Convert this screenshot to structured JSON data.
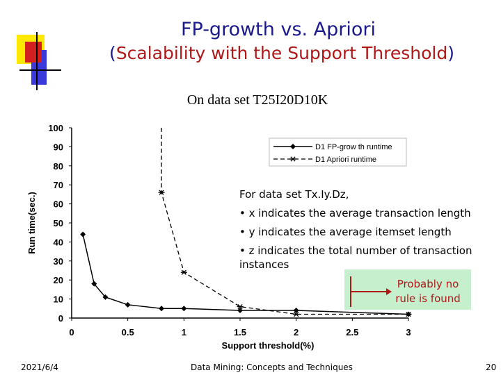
{
  "slide": {
    "title_line1": "FP-growth vs. Apriori",
    "title_line2_open": "(",
    "title_line2_main": "Scalability with the Support Threshold",
    "title_line2_close": ")",
    "subtitle": "On data set T25I20D10K",
    "accent_colors": {
      "title": "#1a1a8c",
      "red": "#b01818",
      "yellow": "#ffe800",
      "blue": "#3a3adc",
      "callout_bg": "#c6efce"
    }
  },
  "note": {
    "line1": "For data set Tx.Iy.Dz,",
    "line2": "• x indicates the average transaction length",
    "line3": "• y indicates the average itemset length",
    "line4": "• z indicates the total number of transaction instances"
  },
  "callout": {
    "text": "Probably no rule is found"
  },
  "footer": {
    "date": "2021/6/4",
    "center": "Data Mining: Concepts and Techniques",
    "page": "20"
  },
  "chart_data": {
    "type": "line",
    "title": "",
    "xlabel": "Support threshold(%)",
    "ylabel": "Run time(sec.)",
    "xlim": [
      0,
      3
    ],
    "ylim": [
      0,
      100
    ],
    "xticks": [
      "0",
      "0.5",
      "1",
      "1.5",
      "2",
      "2.5",
      "3"
    ],
    "yticks": [
      "0",
      "10",
      "20",
      "30",
      "40",
      "50",
      "60",
      "70",
      "80",
      "90",
      "100"
    ],
    "grid": false,
    "legend_position": "top-right",
    "series": [
      {
        "name": "D1 FP-grow th runtime",
        "style": "solid",
        "marker": "diamond",
        "x": [
          0.1,
          0.2,
          0.3,
          0.5,
          0.8,
          1,
          1.5,
          2,
          3
        ],
        "y": [
          44,
          18,
          11,
          7,
          5,
          5,
          4,
          4,
          2
        ]
      },
      {
        "name": "D1 Apriori runtime",
        "style": "dashed",
        "marker": "asterisk",
        "x": [
          0.8,
          1,
          1.5,
          2,
          3
        ],
        "y": [
          66,
          24,
          6,
          2,
          2
        ],
        "extends_above_ylim_at_x": 0.8
      }
    ]
  }
}
